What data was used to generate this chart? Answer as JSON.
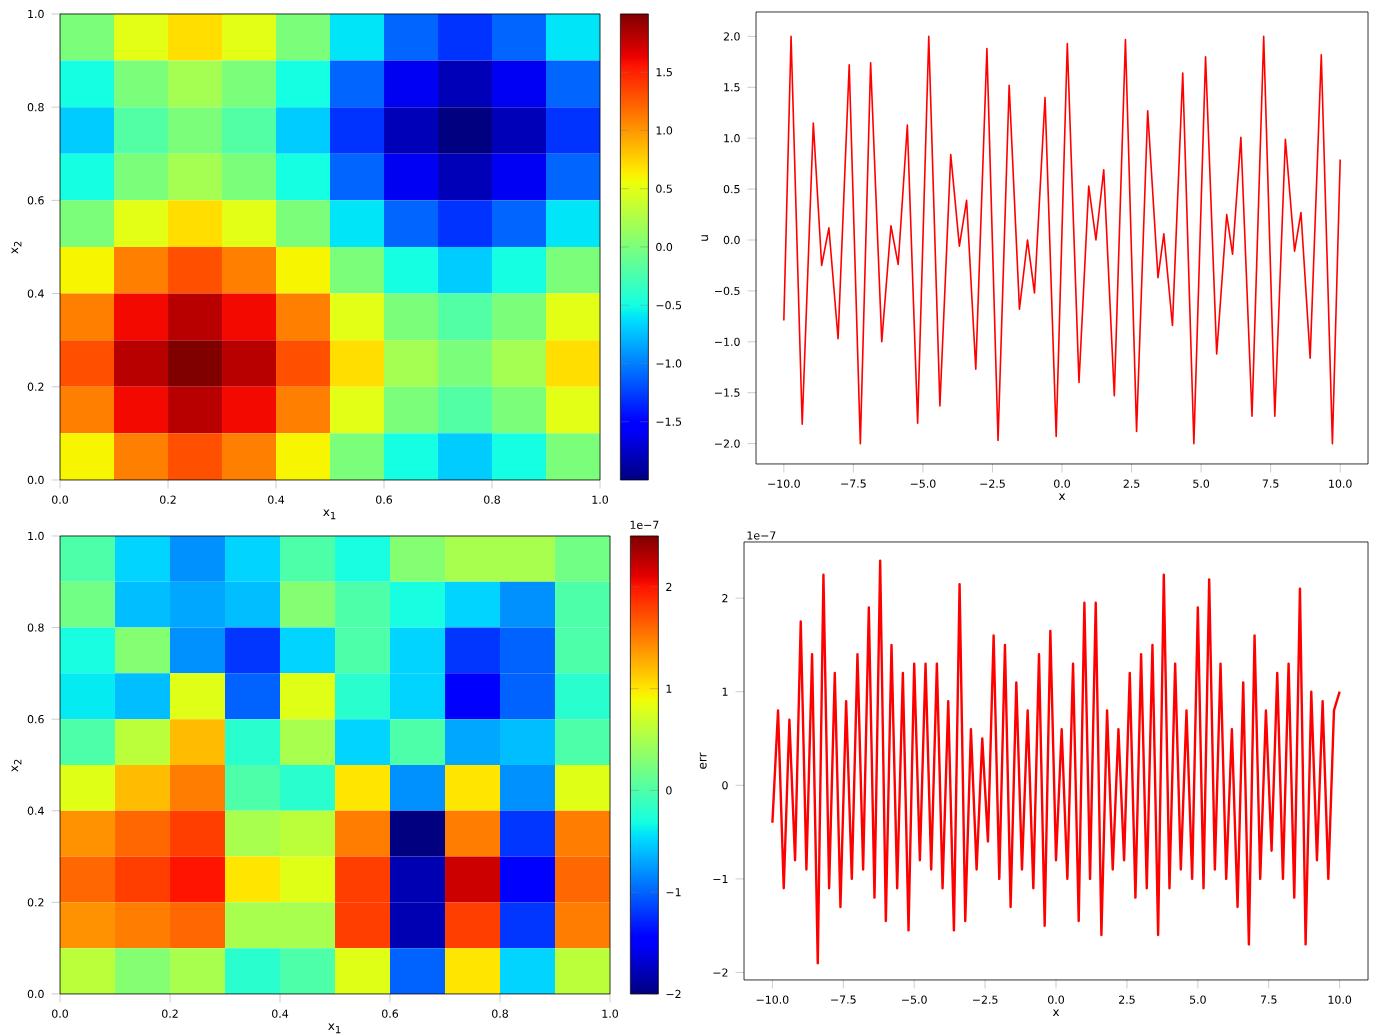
{
  "chart_data": [
    {
      "type": "heatmap",
      "xlabel": "x$_{1}$",
      "ylabel": "x$_{2}$",
      "xlim": [
        0,
        1
      ],
      "ylim": [
        0,
        1
      ],
      "xticks": [
        {
          "value": 0,
          "label": "0.0"
        },
        {
          "value": 0.2,
          "label": "0.2"
        },
        {
          "value": 0.4,
          "label": "0.4"
        },
        {
          "value": 0.6,
          "label": "0.6"
        },
        {
          "value": 0.8,
          "label": "0.8"
        },
        {
          "value": 1,
          "label": "1.0"
        }
      ],
      "yticks": [
        {
          "value": 0,
          "label": "0.0"
        },
        {
          "value": 0.2,
          "label": "0.2"
        },
        {
          "value": 0.4,
          "label": "0.4"
        },
        {
          "value": 0.6,
          "label": "0.6"
        },
        {
          "value": 0.8,
          "label": "0.8"
        },
        {
          "value": 1,
          "label": "1.0"
        }
      ],
      "clim": [
        -2,
        2
      ],
      "cticks": [
        {
          "value": -1.5,
          "label": "−1.5"
        },
        {
          "value": -1,
          "label": "−1.0"
        },
        {
          "value": -0.5,
          "label": "−0.5"
        },
        {
          "value": 0,
          "label": "0.0"
        },
        {
          "value": 0.5,
          "label": "0.5"
        },
        {
          "value": 1,
          "label": "1.0"
        },
        {
          "value": 1.5,
          "label": "1.5"
        }
      ],
      "cells": [
        [
          0,
          0.5,
          0.7,
          0.5,
          0,
          -0.6,
          -1.1,
          -1.3,
          -1.1,
          -0.6
        ],
        [
          -0.5,
          0,
          0.2,
          0,
          -0.5,
          -1.1,
          -1.6,
          -1.8,
          -1.6,
          -1.1
        ],
        [
          -0.7,
          -0.2,
          0,
          -0.2,
          -0.7,
          -1.3,
          -1.8,
          -2.0,
          -1.8,
          -1.3
        ],
        [
          -0.5,
          0,
          0.2,
          0,
          -0.5,
          -1.1,
          -1.6,
          -1.8,
          -1.6,
          -1.1
        ],
        [
          0,
          0.5,
          0.7,
          0.5,
          0,
          -0.6,
          -1.1,
          -1.3,
          -1.1,
          -0.6
        ],
        [
          0.6,
          1.1,
          1.3,
          1.1,
          0.6,
          0,
          -0.5,
          -0.7,
          -0.5,
          0
        ],
        [
          1.1,
          1.6,
          1.8,
          1.6,
          1.1,
          0.5,
          0,
          -0.2,
          0,
          0.5
        ],
        [
          1.3,
          1.8,
          2.0,
          1.8,
          1.3,
          0.7,
          0.2,
          0,
          0.2,
          0.7
        ],
        [
          1.1,
          1.6,
          1.8,
          1.6,
          1.1,
          0.5,
          0,
          -0.2,
          0,
          0.5
        ],
        [
          0.6,
          1.1,
          1.3,
          1.1,
          0.6,
          0,
          -0.5,
          -0.7,
          -0.5,
          0
        ]
      ]
    },
    {
      "type": "line",
      "xlabel": "x",
      "ylabel": "u",
      "xlim": [
        -11,
        11
      ],
      "ylim": [
        -2.2,
        2.24
      ],
      "xticks": [
        {
          "value": -10,
          "label": "−10.0"
        },
        {
          "value": -7.5,
          "label": "−7.5"
        },
        {
          "value": -5,
          "label": "−5.0"
        },
        {
          "value": -2.5,
          "label": "−2.5"
        },
        {
          "value": 0,
          "label": "0.0"
        },
        {
          "value": 2.5,
          "label": "2.5"
        },
        {
          "value": 5,
          "label": "5.0"
        },
        {
          "value": 7.5,
          "label": "7.5"
        },
        {
          "value": 10,
          "label": "10.0"
        }
      ],
      "yticks": [
        {
          "value": -2,
          "label": "−2.0"
        },
        {
          "value": -1.5,
          "label": "−1.5"
        },
        {
          "value": -1,
          "label": "−1.0"
        },
        {
          "value": -0.5,
          "label": "−0.5"
        },
        {
          "value": 0,
          "label": "0.0"
        },
        {
          "value": 0.5,
          "label": "0.5"
        },
        {
          "value": 1,
          "label": "1.0"
        },
        {
          "value": 1.5,
          "label": "1.5"
        },
        {
          "value": 2,
          "label": "2.0"
        }
      ],
      "series": [
        {
          "color": "#ff0000",
          "x": [
            -10,
            -9.74,
            -9.34,
            -8.94,
            -8.64,
            -8.38,
            -8.05,
            -7.65,
            -7.25,
            -6.88,
            -6.48,
            -6.15,
            -5.89,
            -5.56,
            -5.19,
            -4.79,
            -4.39,
            -4.0,
            -3.69,
            -3.43,
            -3.1,
            -2.7,
            -2.3,
            -1.9,
            -1.53,
            -1.24,
            -0.99,
            -0.61,
            -0.21,
            0.19,
            0.61,
            0.96,
            1.22,
            1.5,
            1.88,
            2.28,
            2.68,
            3.08,
            3.45,
            3.66,
            3.97,
            4.34,
            4.74,
            5.16,
            5.56,
            5.92,
            6.13,
            6.43,
            6.83,
            7.25,
            7.65,
            8.03,
            8.36,
            8.59,
            8.92,
            9.32,
            9.72,
            10
          ],
          "values": [
            -0.79,
            2.0,
            -1.81,
            1.15,
            -0.25,
            0.12,
            -0.97,
            1.72,
            -2.0,
            1.74,
            -1.0,
            0.14,
            -0.24,
            1.13,
            -1.8,
            2.0,
            -1.63,
            0.84,
            -0.06,
            0.39,
            -1.27,
            1.88,
            -1.97,
            1.52,
            -0.68,
            0.0,
            -0.52,
            1.4,
            -1.93,
            1.93,
            -1.4,
            0.53,
            0.0,
            0.69,
            -1.53,
            1.97,
            -1.88,
            1.27,
            -0.37,
            0.06,
            -0.84,
            1.64,
            -2.0,
            1.8,
            -1.12,
            0.25,
            -0.14,
            1.01,
            -1.73,
            2.0,
            -1.73,
            0.99,
            -0.11,
            0.27,
            -1.16,
            1.82,
            -2.0,
            0.79
          ]
        }
      ]
    },
    {
      "type": "heatmap",
      "xlabel": "x$_{1}$",
      "ylabel": "x$_{2}$",
      "xlim": [
        0,
        1
      ],
      "ylim": [
        0,
        1
      ],
      "xticks": [
        {
          "value": 0,
          "label": "0.0"
        },
        {
          "value": 0.2,
          "label": "0.2"
        },
        {
          "value": 0.4,
          "label": "0.4"
        },
        {
          "value": 0.6,
          "label": "0.6"
        },
        {
          "value": 0.8,
          "label": "0.8"
        },
        {
          "value": 1,
          "label": "1.0"
        }
      ],
      "yticks": [
        {
          "value": 0,
          "label": "0.0"
        },
        {
          "value": 0.2,
          "label": "0.2"
        },
        {
          "value": 0.4,
          "label": "0.4"
        },
        {
          "value": 0.6,
          "label": "0.6"
        },
        {
          "value": 0.8,
          "label": "0.8"
        },
        {
          "value": 1,
          "label": "1.0"
        }
      ],
      "clim": [
        -2,
        2.5
      ],
      "cticks": [
        {
          "value": -2,
          "label": "−2"
        },
        {
          "value": -1,
          "label": "−1"
        },
        {
          "value": 0,
          "label": "0"
        },
        {
          "value": 1,
          "label": "1"
        },
        {
          "value": 2,
          "label": "2"
        }
      ],
      "annotations": [
        "1e−7"
      ],
      "cells": [
        [
          0,
          -0.5,
          -0.8,
          -0.5,
          0,
          -0.3,
          0.3,
          0.5,
          0.5,
          0.2
        ],
        [
          0.2,
          -0.6,
          -0.7,
          -0.6,
          0.3,
          0,
          -0.3,
          -0.5,
          -0.8,
          0
        ],
        [
          -0.3,
          0.3,
          -0.8,
          -1.2,
          -0.5,
          0,
          -0.5,
          -1.2,
          -1,
          0
        ],
        [
          -0.4,
          -0.6,
          0.8,
          -1,
          0.8,
          -0.2,
          -0.5,
          -1.5,
          -1,
          -0.2
        ],
        [
          0,
          0.6,
          1.2,
          -0.2,
          0.5,
          -0.5,
          0,
          -0.7,
          -0.6,
          0
        ],
        [
          0.8,
          1.2,
          1.5,
          0,
          -0.2,
          1.0,
          -0.8,
          1.0,
          -0.8,
          0.8
        ],
        [
          1.4,
          1.6,
          1.8,
          0.5,
          0.6,
          1.5,
          -2.0,
          1.5,
          -1.2,
          1.5
        ],
        [
          1.6,
          1.8,
          2.0,
          1.0,
          0.8,
          1.8,
          -1.8,
          2.2,
          -1.5,
          1.6
        ],
        [
          1.4,
          1.5,
          1.6,
          0.5,
          0.5,
          1.8,
          -1.8,
          1.8,
          -1.2,
          1.5
        ],
        [
          0.6,
          0.3,
          0.5,
          -0.2,
          0,
          0.8,
          -1,
          1,
          -0.5,
          0.6
        ]
      ]
    },
    {
      "type": "line",
      "xlabel": "x",
      "ylabel": "err",
      "xlim": [
        -11,
        11
      ],
      "ylim": [
        -2.08,
        2.6
      ],
      "xticks": [
        {
          "value": -10,
          "label": "−10.0"
        },
        {
          "value": -7.5,
          "label": "−7.5"
        },
        {
          "value": -5,
          "label": "−5.0"
        },
        {
          "value": -2.5,
          "label": "−2.5"
        },
        {
          "value": 0,
          "label": "0.0"
        },
        {
          "value": 2.5,
          "label": "2.5"
        },
        {
          "value": 5,
          "label": "5.0"
        },
        {
          "value": 7.5,
          "label": "7.5"
        },
        {
          "value": 10,
          "label": "10.0"
        }
      ],
      "yticks": [
        {
          "value": -2,
          "label": "−2"
        },
        {
          "value": -1,
          "label": "−1"
        },
        {
          "value": 0,
          "label": "0"
        },
        {
          "value": 1,
          "label": "1"
        },
        {
          "value": 2,
          "label": "2"
        }
      ],
      "annotations": [
        "1e−7"
      ],
      "series": [
        {
          "color": "#ff0000",
          "x": [
            -10,
            -9.8,
            -9.6,
            -9.4,
            -9.2,
            -9.0,
            -8.8,
            -8.6,
            -8.4,
            -8.2,
            -8.0,
            -7.8,
            -7.6,
            -7.4,
            -7.2,
            -7.0,
            -6.8,
            -6.6,
            -6.4,
            -6.2,
            -6.0,
            -5.8,
            -5.6,
            -5.4,
            -5.2,
            -5.0,
            -4.8,
            -4.6,
            -4.4,
            -4.2,
            -4.0,
            -3.8,
            -3.6,
            -3.4,
            -3.2,
            -3.0,
            -2.8,
            -2.6,
            -2.4,
            -2.2,
            -2.0,
            -1.8,
            -1.6,
            -1.4,
            -1.2,
            -1.0,
            -0.8,
            -0.6,
            -0.4,
            -0.2,
            0.0,
            0.2,
            0.4,
            0.6,
            0.8,
            1.0,
            1.2,
            1.4,
            1.6,
            1.8,
            2.0,
            2.2,
            2.4,
            2.6,
            2.8,
            3.0,
            3.2,
            3.4,
            3.6,
            3.8,
            4.0,
            4.2,
            4.4,
            4.6,
            4.8,
            5.0,
            5.2,
            5.4,
            5.6,
            5.8,
            6.0,
            6.2,
            6.4,
            6.6,
            6.8,
            7.0,
            7.2,
            7.4,
            7.6,
            7.8,
            8.0,
            8.2,
            8.4,
            8.6,
            8.8,
            9.0,
            9.2,
            9.4,
            9.6,
            9.8,
            10.0
          ],
          "values": [
            -0.4,
            0.8,
            -1.1,
            0.7,
            -0.8,
            1.75,
            -0.9,
            1.4,
            -1.9,
            2.25,
            -1.1,
            1.2,
            -1.3,
            0.9,
            -1.0,
            1.4,
            -0.9,
            1.9,
            -1.2,
            2.4,
            -1.45,
            1.5,
            -1.1,
            1.2,
            -1.55,
            1.3,
            -0.8,
            1.3,
            -0.9,
            1.3,
            -1.1,
            0.9,
            -1.55,
            2.15,
            -1.45,
            0.6,
            -0.9,
            0.5,
            -0.6,
            1.6,
            -1.0,
            1.5,
            -1.3,
            1.1,
            -0.9,
            0.8,
            -1.1,
            1.4,
            -1.5,
            1.65,
            -0.8,
            0.6,
            -1.0,
            1.3,
            -1.45,
            1.95,
            -1.0,
            1.95,
            -1.6,
            0.8,
            -0.9,
            0.6,
            -0.8,
            1.2,
            -1.2,
            1.4,
            -1.1,
            1.5,
            -1.6,
            2.25,
            -1.1,
            1.3,
            -0.9,
            0.8,
            -1.0,
            1.9,
            -1.1,
            2.2,
            -0.9,
            1.3,
            -1.0,
            0.6,
            -1.3,
            1.1,
            -1.7,
            1.6,
            -1.0,
            0.8,
            -0.7,
            1.2,
            -1.0,
            1.3,
            -1.2,
            2.1,
            -1.7,
            1.0,
            -0.8,
            0.9,
            -1.0,
            0.8,
            1.0
          ]
        }
      ]
    }
  ]
}
